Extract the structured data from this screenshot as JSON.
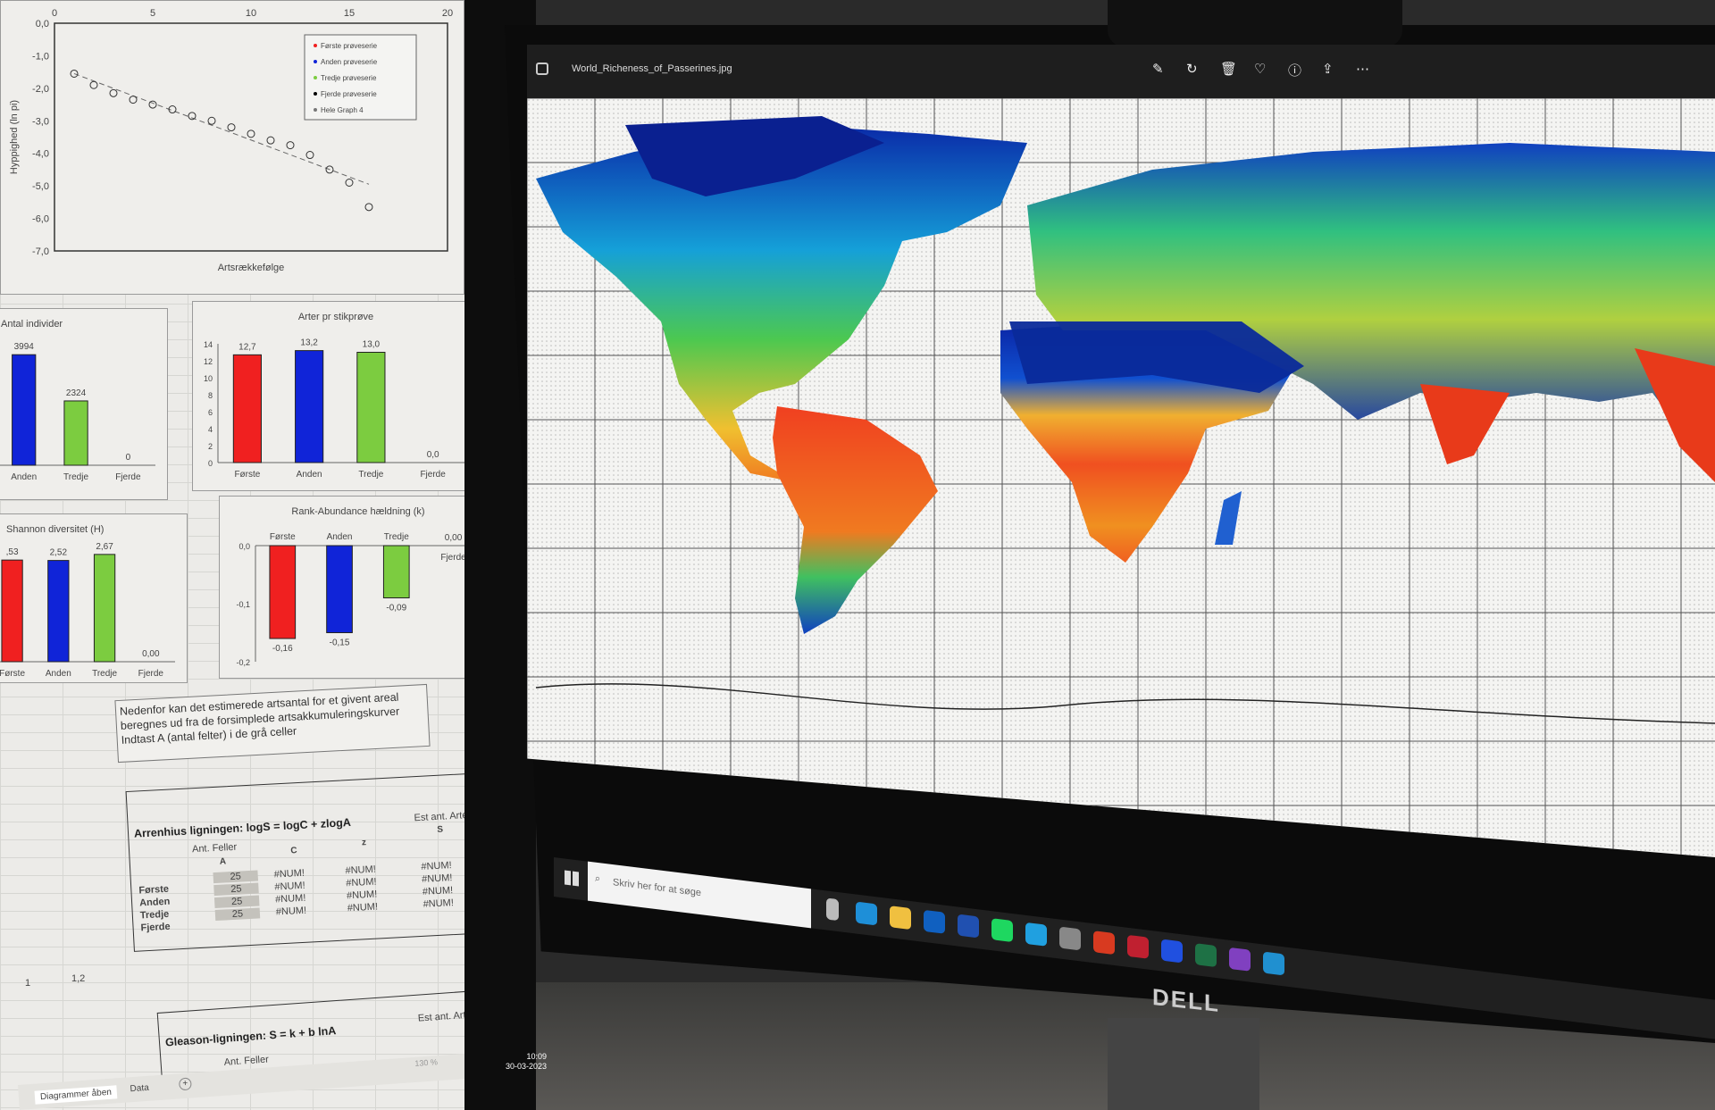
{
  "viewer": {
    "filename": "World_Richeness_of_Passerines.jpg",
    "toolbar_icons": [
      "edit-icon",
      "rotate-icon",
      "delete-icon",
      "heart-icon",
      "info-icon",
      "share-icon",
      "more-icon"
    ],
    "more_label": "..."
  },
  "taskbar": {
    "search_placeholder": "Skriv her for at søge",
    "apps": [
      "task-view-icon",
      "edge-icon",
      "file-explorer-icon",
      "outlook-icon",
      "word-icon",
      "spotify-icon",
      "skype-icon",
      "app-icon",
      "powerpoint-icon",
      "snipping-tool-icon",
      "zotero-icon",
      "excel-icon",
      "onenote-icon",
      "photos-icon"
    ]
  },
  "monitor_brand": "DELL",
  "spreadsheet": {
    "note": [
      "Nedenfor kan det estimerede artsantal for et givent areal",
      "beregnes ud fra de forsimplede artsakkumuleringskurver",
      "Indtast A (antal felter) i de grå celler"
    ],
    "arrhenius": {
      "title": "Arrenhius ligningen: logS = logC + zlogA",
      "col_a_header": "Ant. Feller",
      "col_a": "A",
      "col_c": "C",
      "col_z": "z",
      "col_s_header": "Est ant. Arter",
      "col_s": "S",
      "rows": [
        {
          "label": "Første",
          "a": "25",
          "c": "#NUM!",
          "z": "#NUM!",
          "s": "#NUM!"
        },
        {
          "label": "Anden",
          "a": "25",
          "c": "#NUM!",
          "z": "#NUM!",
          "s": "#NUM!"
        },
        {
          "label": "Tredje",
          "a": "25",
          "c": "#NUM!",
          "z": "#NUM!",
          "s": "#NUM!"
        },
        {
          "label": "Fjerde",
          "a": "25",
          "c": "#NUM!",
          "z": "#NUM!",
          "s": "#NUM!"
        }
      ]
    },
    "gleason": {
      "title": "Gleason-ligningen: S = k + b lnA",
      "col_a_header": "Ant. Feller",
      "col_s_header": "Est ant. Arter"
    },
    "stray_axis": [
      "1",
      "1,2"
    ],
    "sheet_tabs": [
      "Diagrammer åben",
      "Data"
    ],
    "zoom": "130 %",
    "clock": {
      "time": "10:09",
      "date": "30-03-2023"
    }
  },
  "colors": {
    "first": "#f02020",
    "second": "#1024d8",
    "third": "#7ccc40"
  },
  "chart_data": [
    {
      "type": "scatter",
      "xlabel": "Artsrækkefølge",
      "ylabel": "Hyppighed (ln pi)",
      "xlim": [
        0,
        20
      ],
      "ylim": [
        -7,
        0
      ],
      "xticks": [
        "0",
        "5",
        "10",
        "15",
        "20"
      ],
      "yticks": [
        "0,0",
        "-1,0",
        "-2,0",
        "-3,0",
        "-4,0",
        "-5,0",
        "-6,0",
        "-7,0"
      ],
      "legend": [
        "Første prøveserie",
        "Anden prøveserie",
        "Tredje prøveserie",
        "Fjerde prøveserie",
        "Hele Graph 4"
      ],
      "legend_position": "top-right",
      "x": [
        1,
        2,
        3,
        4,
        5,
        6,
        7,
        8,
        9,
        10,
        11,
        12,
        13,
        14,
        15,
        16
      ],
      "y": [
        -1.55,
        -1.9,
        -2.15,
        -2.35,
        -2.5,
        -2.65,
        -2.85,
        -3.0,
        -3.2,
        -3.4,
        -3.6,
        -3.75,
        -4.05,
        -4.5,
        -4.9,
        -5.65
      ],
      "trendline": {
        "from": [
          1,
          -1.55
        ],
        "to": [
          16,
          -4.95
        ]
      }
    },
    {
      "type": "bar",
      "title": "Antal individer",
      "categories": [
        "Anden",
        "Tredje",
        "Fjerde"
      ],
      "values": [
        3994,
        2324,
        0
      ],
      "labels": [
        "3994",
        "2324",
        "0"
      ]
    },
    {
      "type": "bar",
      "title": "Arter pr stikprøve",
      "categories": [
        "Første",
        "Anden",
        "Tredje",
        "Fjerde"
      ],
      "values": [
        12.7,
        13.2,
        13.0,
        0.0
      ],
      "labels": [
        "12,7",
        "13,2",
        "13,0",
        "0,0"
      ],
      "ylim": [
        0,
        14
      ],
      "yticks": [
        "0",
        "2",
        "4",
        "6",
        "8",
        "10",
        "12",
        "14"
      ]
    },
    {
      "type": "bar",
      "title": "Shannon diversitet (H)",
      "categories": [
        "Første",
        "Anden",
        "Tredje",
        "Fjerde"
      ],
      "values": [
        2.53,
        2.52,
        2.67,
        0.0
      ],
      "labels": [
        ",53",
        "2,52",
        "2,67",
        "0,00"
      ]
    },
    {
      "type": "bar",
      "title": "Rank-Abundance hældning (k)",
      "categories": [
        "Første",
        "Anden",
        "Tredje",
        "Fjerde"
      ],
      "values": [
        -0.16,
        -0.15,
        -0.09,
        0.0
      ],
      "labels": [
        "-0,16",
        "-0,15",
        "-0,09",
        "0,00"
      ],
      "ylim": [
        -0.2,
        0
      ],
      "yticks": [
        "0,0",
        "-0,1",
        "-0,2"
      ]
    }
  ]
}
